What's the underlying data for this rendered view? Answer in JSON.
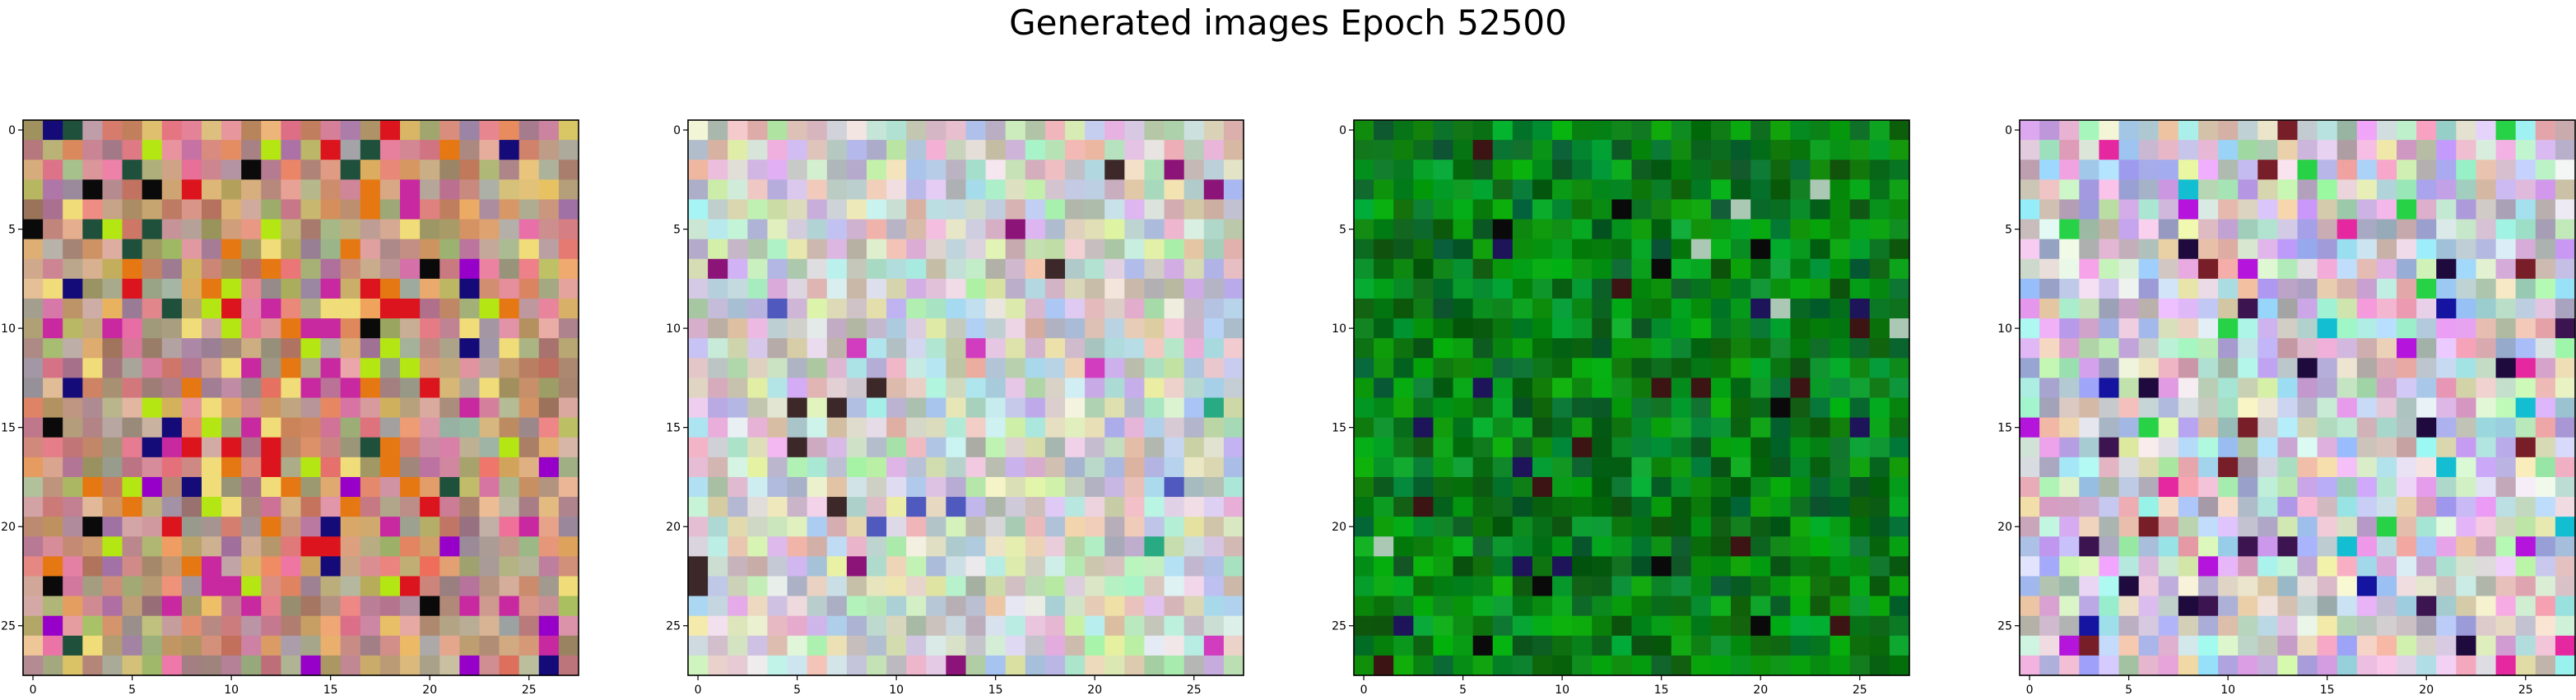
{
  "figure": {
    "title": "Generated images Epoch 52500"
  },
  "chart_data": [
    {
      "type": "heatmap",
      "palette": "warm",
      "grid_size": [
        28,
        28
      ],
      "xticks": [
        0,
        5,
        10,
        15,
        20,
        25
      ],
      "yticks": [
        0,
        5,
        10,
        15,
        20,
        25
      ],
      "xlim": [
        -0.5,
        27.5
      ],
      "ylim": [
        27.5,
        -0.5
      ],
      "grid": false,
      "tick_labels": [
        "0",
        "5",
        "10",
        "15",
        "20",
        "25"
      ]
    },
    {
      "type": "heatmap",
      "palette": "pastel",
      "grid_size": [
        28,
        28
      ],
      "xticks": [
        0,
        5,
        10,
        15,
        20,
        25
      ],
      "yticks": [
        0,
        5,
        10,
        15,
        20,
        25
      ],
      "xlim": [
        -0.5,
        27.5
      ],
      "ylim": [
        27.5,
        -0.5
      ],
      "grid": false,
      "tick_labels": [
        "0",
        "5",
        "10",
        "15",
        "20",
        "25"
      ]
    },
    {
      "type": "heatmap",
      "palette": "green",
      "grid_size": [
        28,
        28
      ],
      "xticks": [
        0,
        5,
        10,
        15,
        20,
        25
      ],
      "yticks": [
        0,
        5,
        10,
        15,
        20,
        25
      ],
      "xlim": [
        -0.5,
        27.5
      ],
      "ylim": [
        27.5,
        -0.5
      ],
      "grid": false,
      "tick_labels": [
        "0",
        "5",
        "10",
        "15",
        "20",
        "25"
      ]
    },
    {
      "type": "heatmap",
      "palette": "pastel-vivid",
      "grid_size": [
        28,
        28
      ],
      "xticks": [
        0,
        5,
        10,
        15,
        20,
        25
      ],
      "yticks": [
        0,
        5,
        10,
        15,
        20,
        25
      ],
      "xlim": [
        -0.5,
        27.5
      ],
      "ylim": [
        27.5,
        -0.5
      ],
      "grid": false,
      "tick_labels": [
        "0",
        "5",
        "10",
        "15",
        "20",
        "25"
      ]
    }
  ]
}
